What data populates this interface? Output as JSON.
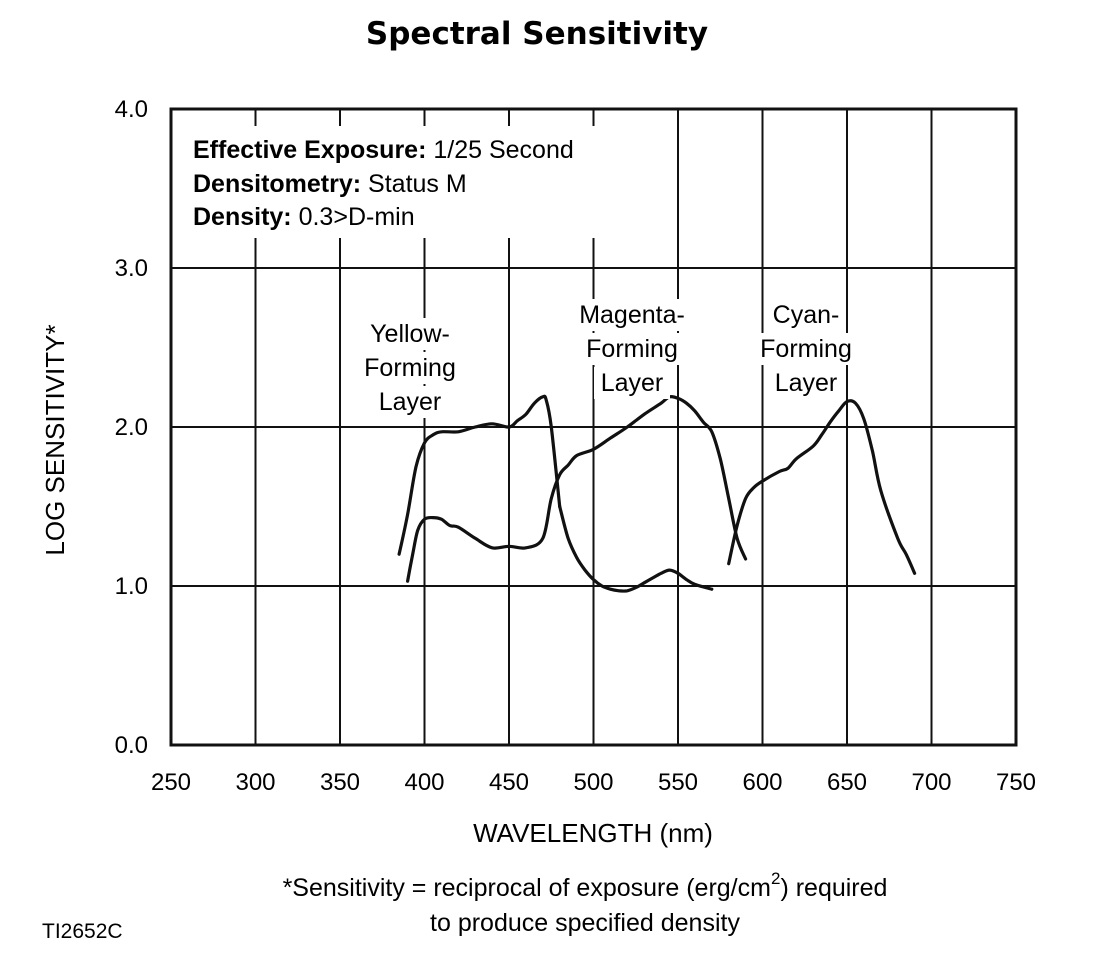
{
  "chart_data": {
    "type": "line",
    "title": "Spectral Sensitivity",
    "xlabel": "WAVELENGTH (nm)",
    "ylabel": "LOG SENSITIVITY*",
    "xlim": [
      250,
      750
    ],
    "ylim": [
      0,
      4
    ],
    "x_ticks": [
      250,
      300,
      350,
      400,
      450,
      500,
      550,
      600,
      650,
      700,
      750
    ],
    "y_ticks": [
      "0.0",
      "1.0",
      "2.0",
      "3.0",
      "4.0"
    ],
    "grid": true,
    "info": {
      "line1_label": "Effective Exposure:",
      "line1_value": " 1/25 Second",
      "line2_label": "Densitometry:",
      "line2_value": " Status M",
      "line3_label": "Density:",
      "line3_value": " 0.3>D-min"
    },
    "series": [
      {
        "name": "Yellow-Forming Layer",
        "label_lines": [
          "Yellow-",
          "Forming",
          "Layer"
        ],
        "x": [
          385,
          390,
          395,
          400,
          405,
          410,
          420,
          430,
          440,
          450,
          455,
          460,
          465,
          470,
          472,
          475,
          480
        ],
        "y": [
          1.2,
          1.45,
          1.75,
          1.9,
          1.95,
          1.97,
          1.97,
          2.0,
          2.02,
          2.0,
          2.04,
          2.08,
          2.15,
          2.19,
          2.17,
          2.0,
          1.5
        ],
        "x2": [
          480,
          485,
          490,
          495,
          500,
          505,
          510,
          515,
          520,
          525,
          530,
          535,
          540,
          545,
          550,
          555,
          560,
          570
        ],
        "y2": [
          1.5,
          1.3,
          1.18,
          1.1,
          1.04,
          1.0,
          0.98,
          0.97,
          0.97,
          0.99,
          1.02,
          1.05,
          1.08,
          1.1,
          1.08,
          1.04,
          1.01,
          0.98
        ]
      },
      {
        "name": "Magenta-Forming Layer",
        "label_lines": [
          "Magenta-",
          "Forming",
          "Layer"
        ],
        "x": [
          390,
          393,
          396,
          400,
          405,
          410,
          415,
          420,
          430,
          440,
          450,
          460,
          470,
          475,
          480,
          485,
          490,
          500,
          510,
          520,
          530,
          540,
          545,
          550,
          555,
          560,
          565,
          570,
          575,
          580,
          585,
          590
        ],
        "y": [
          1.03,
          1.2,
          1.35,
          1.42,
          1.43,
          1.42,
          1.38,
          1.37,
          1.3,
          1.24,
          1.25,
          1.24,
          1.3,
          1.55,
          1.7,
          1.76,
          1.82,
          1.86,
          1.93,
          2.0,
          2.08,
          2.15,
          2.19,
          2.18,
          2.15,
          2.1,
          2.03,
          1.97,
          1.8,
          1.55,
          1.3,
          1.17
        ],
        "x2": [],
        "y2": []
      },
      {
        "name": "Cyan-Forming Layer",
        "label_lines": [
          "Cyan-",
          "Forming",
          "Layer"
        ],
        "x": [
          580,
          585,
          590,
          595,
          600,
          610,
          615,
          620,
          630,
          635,
          640,
          645,
          650,
          655,
          660,
          665,
          670,
          680,
          685,
          690
        ],
        "y": [
          1.14,
          1.38,
          1.55,
          1.62,
          1.66,
          1.72,
          1.74,
          1.8,
          1.88,
          1.95,
          2.03,
          2.1,
          2.16,
          2.15,
          2.05,
          1.85,
          1.6,
          1.3,
          1.2,
          1.08
        ],
        "x2": [],
        "y2": []
      }
    ],
    "footnote_line1": "*Sensitivity = reciprocal of exposure (erg/cm",
    "footnote_sup": "2",
    "footnote_line1_end": ") required",
    "footnote_line2": "to produce specified density",
    "figure_code": "TI2652C"
  }
}
